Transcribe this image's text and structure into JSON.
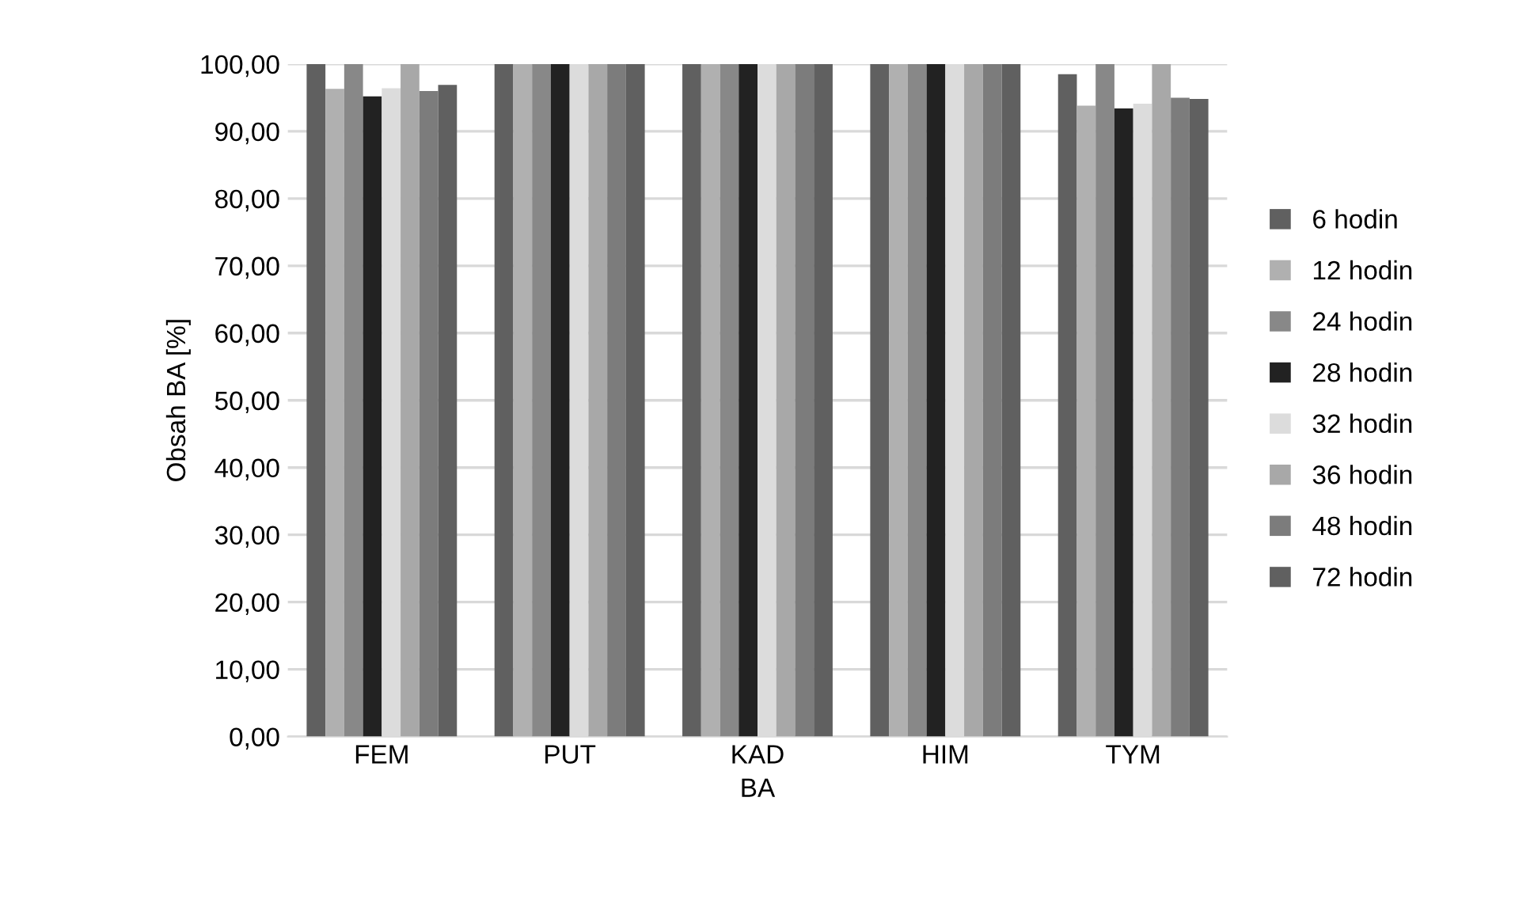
{
  "chart_data": {
    "type": "bar",
    "xlabel": "BA",
    "ylabel": "Obsah BA [%]",
    "categories": [
      "FEM",
      "PUT",
      "KAD",
      "HIM",
      "TYM"
    ],
    "series": [
      {
        "name": "6 hodin",
        "color": "#606060",
        "values": [
          100,
          100,
          100,
          100,
          98.5
        ]
      },
      {
        "name": "12 hodin",
        "color": "#b0b0b0",
        "values": [
          96.3,
          100,
          100,
          100,
          93.8
        ]
      },
      {
        "name": "24 hodin",
        "color": "#888888",
        "values": [
          100,
          100,
          100,
          100,
          100
        ]
      },
      {
        "name": "28 hodin",
        "color": "#222222",
        "values": [
          95.2,
          100,
          100,
          100,
          93.4
        ]
      },
      {
        "name": "32 hodin",
        "color": "#dcdcdc",
        "values": [
          96.4,
          100,
          100,
          100,
          94.1
        ]
      },
      {
        "name": "36 hodin",
        "color": "#a8a8a8",
        "values": [
          100,
          100,
          100,
          100,
          100
        ]
      },
      {
        "name": "48 hodin",
        "color": "#7c7c7c",
        "values": [
          96.0,
          100,
          100,
          100,
          95.0
        ]
      },
      {
        "name": "72 hodin",
        "color": "#606060",
        "values": [
          96.9,
          100,
          100,
          100,
          94.8
        ]
      }
    ],
    "ylim": [
      0,
      100
    ],
    "yticks": [
      {
        "value": 0,
        "label": "0,00"
      },
      {
        "value": 10,
        "label": "10,00"
      },
      {
        "value": 20,
        "label": "20,00"
      },
      {
        "value": 30,
        "label": "30,00"
      },
      {
        "value": 40,
        "label": "40,00"
      },
      {
        "value": 50,
        "label": "50,00"
      },
      {
        "value": 60,
        "label": "60,00"
      },
      {
        "value": 70,
        "label": "70,00"
      },
      {
        "value": 80,
        "label": "80,00"
      },
      {
        "value": 90,
        "label": "90,00"
      },
      {
        "value": 100,
        "label": "100,00"
      }
    ],
    "grid": "y",
    "legend": "right"
  }
}
